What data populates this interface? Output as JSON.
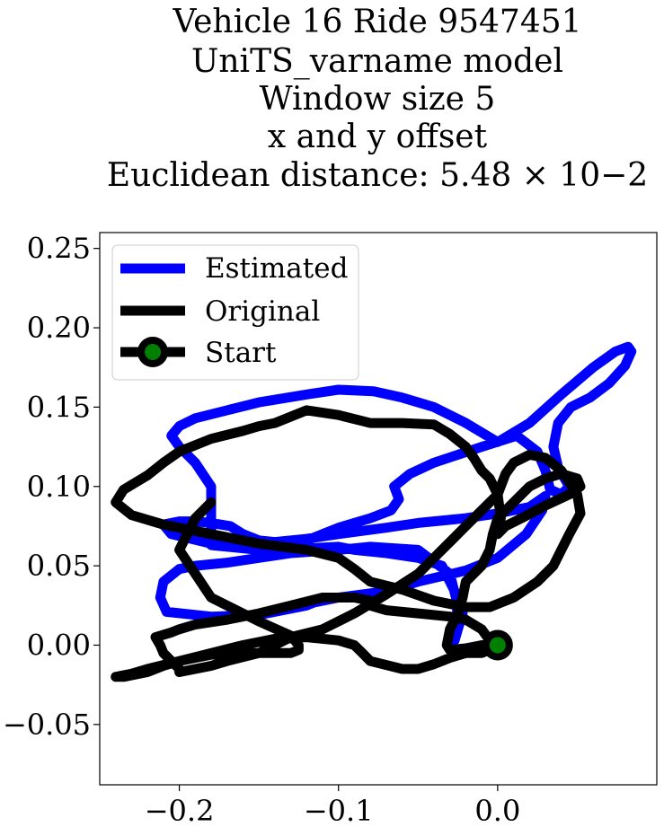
{
  "chart_data": {
    "type": "line",
    "title_lines": [
      "Vehicle 16 Ride 9547451",
      "UniTS_varname model",
      "Window size 5",
      "x and y offset",
      "Euclidean distance: 5.48 × 10−2"
    ],
    "xlabel": "",
    "ylabel": "",
    "xlim": [
      -0.25,
      0.1
    ],
    "ylim": [
      -0.088,
      0.26
    ],
    "xticks": [
      -0.2,
      -0.1,
      0.0
    ],
    "xtick_labels": [
      "−0.2",
      "−0.1",
      "0.0"
    ],
    "yticks": [
      -0.05,
      0.0,
      0.05,
      0.1,
      0.15,
      0.2,
      0.25
    ],
    "ytick_labels": [
      "−0.05",
      "0.00",
      "0.05",
      "0.10",
      "0.15",
      "0.20",
      "0.25"
    ],
    "legend": {
      "position": "top-left",
      "entries": [
        "Estimated",
        "Original",
        "Start"
      ]
    },
    "colors": {
      "estimated": "#0000ff",
      "original": "#000000",
      "start_fill": "#008000",
      "start_edge": "#000000"
    },
    "series": [
      {
        "name": "Estimated",
        "x": [
          -0.027,
          -0.025,
          -0.022,
          -0.025,
          -0.03,
          -0.035,
          -0.05,
          -0.07,
          -0.09,
          -0.1,
          -0.12,
          -0.15,
          -0.18,
          -0.18,
          -0.18,
          -0.19,
          -0.2,
          -0.205,
          -0.2,
          -0.19,
          -0.17,
          -0.15,
          -0.12,
          -0.1,
          -0.078,
          -0.06,
          -0.04,
          -0.02,
          0.0,
          0.02,
          0.04,
          0.06,
          0.074,
          0.082,
          0.084,
          0.08,
          0.07,
          0.058,
          0.046,
          0.038,
          0.035,
          0.038,
          0.045,
          0.04,
          0.033,
          0.03,
          0.025,
          0.012,
          -0.01,
          -0.04,
          -0.055,
          -0.065,
          -0.062,
          -0.067,
          -0.08,
          -0.1,
          -0.12,
          -0.15,
          -0.18,
          -0.205,
          -0.21,
          -0.2,
          -0.195,
          -0.19,
          -0.18,
          -0.168,
          -0.16,
          -0.15,
          -0.14,
          -0.12,
          -0.1,
          -0.07,
          -0.05,
          -0.02,
          0.0,
          0.02,
          0.03,
          0.028,
          0.018,
          0.0,
          -0.02,
          -0.05,
          -0.07,
          -0.1,
          -0.115,
          -0.12,
          -0.13,
          -0.15,
          -0.18,
          -0.208,
          -0.212,
          -0.21,
          -0.2,
          -0.19,
          -0.17,
          -0.15,
          -0.13,
          -0.1,
          -0.08,
          -0.05,
          -0.03,
          -0.025,
          -0.028
        ],
        "y": [
          0.003,
          0.01,
          0.02,
          0.03,
          0.04,
          0.05,
          0.055,
          0.058,
          0.06,
          0.062,
          0.061,
          0.06,
          0.063,
          0.08,
          0.1,
          0.115,
          0.125,
          0.132,
          0.138,
          0.143,
          0.148,
          0.153,
          0.158,
          0.161,
          0.16,
          0.156,
          0.15,
          0.14,
          0.128,
          0.14,
          0.158,
          0.175,
          0.185,
          0.188,
          0.185,
          0.176,
          0.165,
          0.156,
          0.15,
          0.14,
          0.125,
          0.112,
          0.1,
          0.095,
          0.098,
          0.11,
          0.122,
          0.132,
          0.125,
          0.115,
          0.108,
          0.1,
          0.092,
          0.085,
          0.08,
          0.074,
          0.066,
          0.06,
          0.064,
          0.07,
          0.076,
          0.078,
          0.078,
          0.078,
          0.077,
          0.075,
          0.07,
          0.066,
          0.065,
          0.067,
          0.07,
          0.074,
          0.077,
          0.08,
          0.083,
          0.087,
          0.094,
          0.085,
          0.07,
          0.055,
          0.047,
          0.04,
          0.034,
          0.03,
          0.027,
          0.025,
          0.023,
          0.019,
          0.018,
          0.021,
          0.03,
          0.04,
          0.048,
          0.05,
          0.052,
          0.055,
          0.058,
          0.06,
          0.062,
          0.06,
          0.045,
          0.025,
          0.003
        ]
      },
      {
        "name": "Original",
        "x": [
          0.0,
          -0.01,
          -0.02,
          -0.03,
          -0.032,
          -0.03,
          -0.025,
          -0.022,
          -0.02,
          -0.01,
          -0.005,
          -0.003,
          0.0,
          0.01,
          0.02,
          0.03,
          0.04,
          0.05,
          0.052,
          0.045,
          0.03,
          0.015,
          0.005,
          0.0,
          0.002,
          0.0,
          -0.005,
          -0.01,
          -0.015,
          -0.02,
          -0.03,
          -0.04,
          -0.06,
          -0.08,
          -0.1,
          -0.12,
          -0.14,
          -0.15,
          -0.16,
          -0.18,
          -0.2,
          -0.21,
          -0.22,
          -0.235,
          -0.24,
          -0.23,
          -0.21,
          -0.18,
          -0.15,
          -0.12,
          -0.1,
          -0.09,
          -0.08,
          -0.06,
          -0.04,
          -0.02,
          -0.005,
          0.01,
          0.025,
          0.035,
          0.04,
          0.045,
          0.052,
          0.05,
          0.04,
          0.03,
          0.02,
          0.01,
          0.005,
          0.0,
          -0.01,
          -0.02,
          -0.035,
          -0.05,
          -0.07,
          -0.09,
          -0.11,
          -0.13,
          -0.14,
          -0.15,
          -0.17,
          -0.18,
          -0.19,
          -0.2,
          -0.2,
          -0.205,
          -0.21,
          -0.212,
          -0.215,
          -0.205,
          -0.2,
          -0.19,
          -0.17,
          -0.15,
          -0.13,
          -0.11,
          -0.09,
          -0.08,
          -0.08,
          -0.07,
          -0.05,
          -0.03,
          -0.02,
          -0.01,
          -0.005,
          -0.005,
          -0.01,
          -0.015,
          -0.02,
          -0.03,
          -0.04,
          -0.05,
          -0.06,
          -0.08,
          -0.085,
          -0.09,
          -0.1,
          -0.12,
          -0.14,
          -0.16,
          -0.18,
          -0.2,
          -0.22,
          -0.23,
          -0.24,
          -0.235,
          -0.22,
          -0.21,
          -0.2,
          -0.19,
          -0.18,
          -0.17,
          -0.15,
          -0.13,
          -0.125,
          -0.125,
          -0.13,
          -0.15,
          -0.18,
          -0.2,
          -0.19,
          -0.18
        ],
        "y": [
          0.0,
          0.0,
          -0.002,
          -0.003,
          0.0,
          0.01,
          0.02,
          0.03,
          0.04,
          0.05,
          0.06,
          0.07,
          0.08,
          0.09,
          0.1,
          0.105,
          0.108,
          0.105,
          0.1,
          0.095,
          0.088,
          0.08,
          0.075,
          0.07,
          0.08,
          0.095,
          0.105,
          0.11,
          0.118,
          0.125,
          0.133,
          0.139,
          0.14,
          0.14,
          0.145,
          0.148,
          0.14,
          0.138,
          0.135,
          0.13,
          0.122,
          0.115,
          0.107,
          0.098,
          0.09,
          0.082,
          0.076,
          0.07,
          0.064,
          0.06,
          0.055,
          0.048,
          0.04,
          0.035,
          0.028,
          0.024,
          0.024,
          0.03,
          0.04,
          0.05,
          0.06,
          0.07,
          0.083,
          0.095,
          0.11,
          0.118,
          0.12,
          0.115,
          0.108,
          0.095,
          0.085,
          0.075,
          0.06,
          0.045,
          0.032,
          0.02,
          0.01,
          0.005,
          0.0,
          -0.005,
          -0.01,
          -0.013,
          -0.015,
          -0.017,
          -0.015,
          -0.01,
          -0.005,
          0.0,
          0.005,
          0.008,
          0.01,
          0.013,
          0.016,
          0.02,
          0.025,
          0.03,
          0.03,
          0.028,
          0.025,
          0.022,
          0.02,
          0.018,
          0.016,
          0.01,
          0.003,
          -0.003,
          -0.005,
          -0.005,
          -0.005,
          -0.008,
          -0.012,
          -0.015,
          -0.015,
          -0.01,
          -0.005,
          0.0,
          0.003,
          0.005,
          0.004,
          0.0,
          -0.005,
          -0.01,
          -0.015,
          -0.018,
          -0.02,
          -0.02,
          -0.017,
          -0.013,
          -0.01,
          -0.008,
          -0.006,
          -0.005,
          -0.005,
          -0.005,
          -0.003,
          0.0,
          0.006,
          0.015,
          0.03,
          0.06,
          0.08,
          0.09
        ]
      },
      {
        "name": "Start",
        "x": [
          0.0
        ],
        "y": [
          0.0
        ]
      }
    ]
  }
}
